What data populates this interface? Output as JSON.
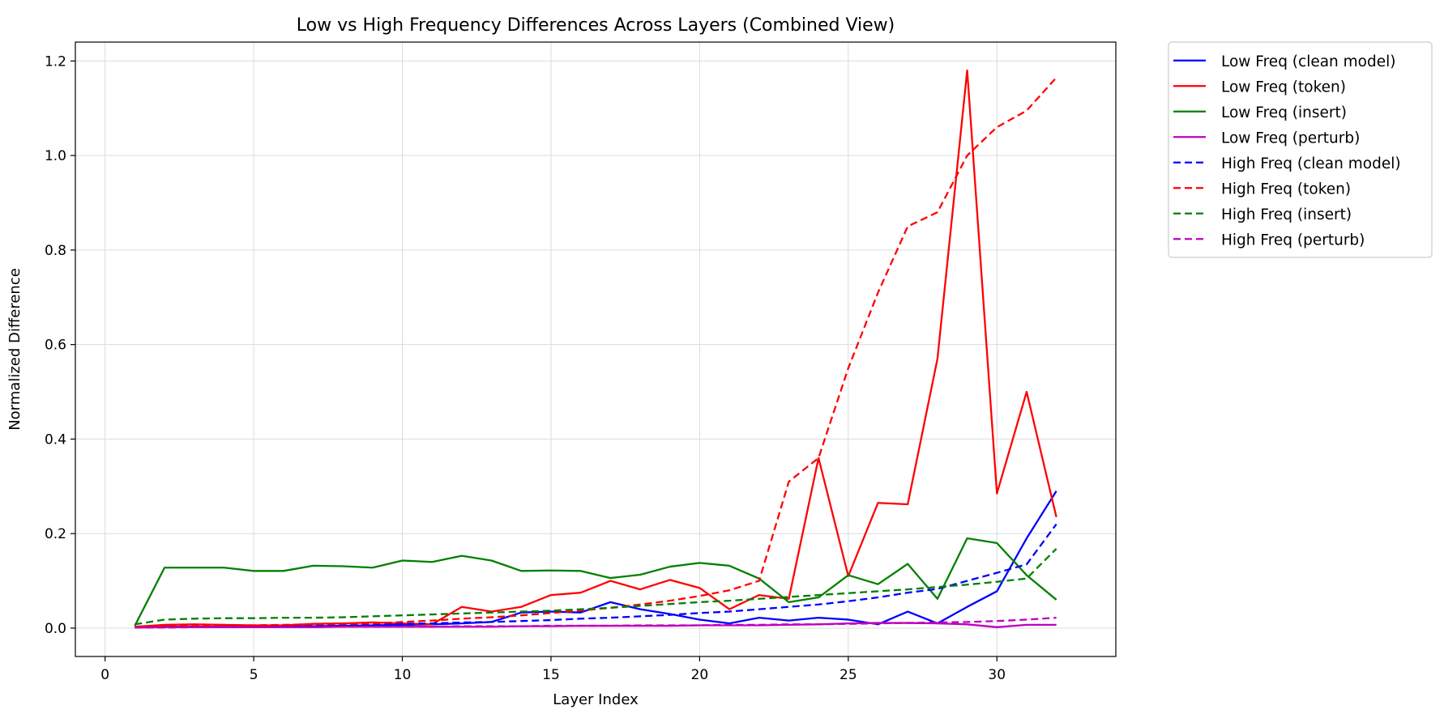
{
  "chart_data": {
    "type": "line",
    "title": "Low vs High Frequency Differences Across Layers (Combined View)",
    "xlabel": "Layer Index",
    "ylabel": "Normalized Difference",
    "xlim": [
      -1,
      34
    ],
    "ylim": [
      -0.06,
      1.24
    ],
    "xticks": [
      0,
      5,
      10,
      15,
      20,
      25,
      30
    ],
    "yticks": [
      0.0,
      0.2,
      0.4,
      0.6,
      0.8,
      1.0,
      1.2
    ],
    "xtick_labels": [
      "0",
      "5",
      "10",
      "15",
      "20",
      "25",
      "30"
    ],
    "ytick_labels": [
      "0.0",
      "0.2",
      "0.4",
      "0.6",
      "0.8",
      "1.0",
      "1.2"
    ],
    "grid": true,
    "legend_position": "outside top-right",
    "x": [
      1,
      2,
      3,
      4,
      5,
      6,
      7,
      8,
      9,
      10,
      11,
      12,
      13,
      14,
      15,
      16,
      17,
      18,
      19,
      20,
      21,
      22,
      23,
      24,
      25,
      26,
      27,
      28,
      29,
      30,
      31,
      32
    ],
    "series": [
      {
        "name": "Low Freq (clean model)",
        "color": "#0000ff",
        "style": "solid",
        "values": [
          0.002,
          0.003,
          0.003,
          0.003,
          0.003,
          0.003,
          0.004,
          0.005,
          0.006,
          0.007,
          0.008,
          0.01,
          0.013,
          0.033,
          0.035,
          0.033,
          0.055,
          0.04,
          0.03,
          0.018,
          0.01,
          0.022,
          0.016,
          0.022,
          0.018,
          0.008,
          0.035,
          0.01,
          0.045,
          0.078,
          0.19,
          0.29
        ]
      },
      {
        "name": "Low Freq (token)",
        "color": "#ff0000",
        "style": "solid",
        "values": [
          0.003,
          0.007,
          0.008,
          0.007,
          0.006,
          0.006,
          0.009,
          0.01,
          0.012,
          0.01,
          0.008,
          0.045,
          0.035,
          0.045,
          0.07,
          0.075,
          0.1,
          0.082,
          0.102,
          0.085,
          0.04,
          0.07,
          0.062,
          0.36,
          0.11,
          0.265,
          0.262,
          0.57,
          1.18,
          0.285,
          0.5,
          0.235
        ]
      },
      {
        "name": "Low Freq (insert)",
        "color": "#008000",
        "style": "solid",
        "values": [
          0.005,
          0.128,
          0.128,
          0.128,
          0.121,
          0.121,
          0.132,
          0.131,
          0.128,
          0.143,
          0.14,
          0.153,
          0.143,
          0.121,
          0.122,
          0.121,
          0.106,
          0.113,
          0.13,
          0.138,
          0.132,
          0.105,
          0.055,
          0.065,
          0.112,
          0.093,
          0.136,
          0.062,
          0.19,
          0.18,
          0.112,
          0.06
        ]
      },
      {
        "name": "Low Freq (perturb)",
        "color": "#bf00bf",
        "style": "solid",
        "values": [
          0.001,
          0.002,
          0.002,
          0.002,
          0.002,
          0.002,
          0.002,
          0.003,
          0.003,
          0.003,
          0.003,
          0.003,
          0.003,
          0.004,
          0.004,
          0.005,
          0.005,
          0.005,
          0.005,
          0.006,
          0.006,
          0.006,
          0.007,
          0.008,
          0.01,
          0.011,
          0.011,
          0.01,
          0.008,
          0.002,
          0.007,
          0.007
        ]
      },
      {
        "name": "High Freq (clean model)",
        "color": "#0000ff",
        "style": "dashed",
        "values": [
          0.002,
          0.003,
          0.004,
          0.004,
          0.005,
          0.005,
          0.006,
          0.007,
          0.008,
          0.009,
          0.01,
          0.012,
          0.013,
          0.015,
          0.017,
          0.02,
          0.022,
          0.025,
          0.028,
          0.032,
          0.035,
          0.04,
          0.045,
          0.05,
          0.057,
          0.065,
          0.075,
          0.083,
          0.1,
          0.117,
          0.135,
          0.22
        ]
      },
      {
        "name": "High Freq (token)",
        "color": "#ff0000",
        "style": "dashed",
        "values": [
          0.003,
          0.004,
          0.005,
          0.006,
          0.006,
          0.007,
          0.008,
          0.009,
          0.01,
          0.013,
          0.016,
          0.02,
          0.023,
          0.027,
          0.032,
          0.037,
          0.043,
          0.05,
          0.058,
          0.068,
          0.08,
          0.1,
          0.31,
          0.36,
          0.55,
          0.71,
          0.85,
          0.88,
          1.0,
          1.06,
          1.095,
          1.165
        ]
      },
      {
        "name": "High Freq (insert)",
        "color": "#008000",
        "style": "dashed",
        "values": [
          0.008,
          0.018,
          0.02,
          0.021,
          0.021,
          0.022,
          0.022,
          0.023,
          0.025,
          0.027,
          0.029,
          0.031,
          0.033,
          0.035,
          0.037,
          0.04,
          0.043,
          0.047,
          0.051,
          0.055,
          0.058,
          0.062,
          0.066,
          0.07,
          0.074,
          0.078,
          0.082,
          0.087,
          0.092,
          0.098,
          0.105,
          0.168
        ]
      },
      {
        "name": "High Freq (perturb)",
        "color": "#bf00bf",
        "style": "dashed",
        "values": [
          0.001,
          0.001,
          0.002,
          0.002,
          0.002,
          0.002,
          0.002,
          0.003,
          0.003,
          0.003,
          0.003,
          0.004,
          0.004,
          0.004,
          0.005,
          0.005,
          0.005,
          0.006,
          0.006,
          0.006,
          0.007,
          0.007,
          0.008,
          0.008,
          0.009,
          0.01,
          0.011,
          0.012,
          0.013,
          0.015,
          0.018,
          0.022
        ]
      }
    ]
  }
}
